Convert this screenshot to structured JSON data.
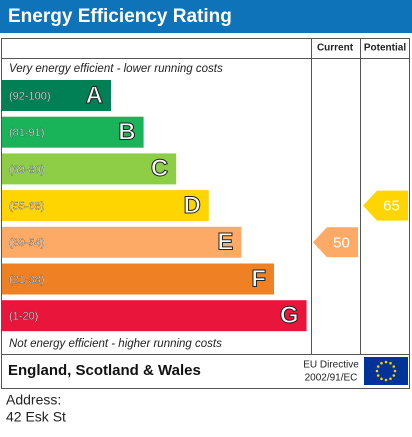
{
  "chart_data": {
    "type": "epc",
    "title": "Energy Efficiency Rating",
    "column_headers": [
      "Current",
      "Potential"
    ],
    "top_note": "Very energy efficient - lower running costs",
    "bottom_note": "Not energy efficient - higher running costs",
    "bands": [
      {
        "letter": "A",
        "range": "(92-100)",
        "color": "#008054"
      },
      {
        "letter": "B",
        "range": "(81-91)",
        "color": "#19b459"
      },
      {
        "letter": "C",
        "range": "(69-80)",
        "color": "#8dce46"
      },
      {
        "letter": "D",
        "range": "(55-68)",
        "color": "#ffd500"
      },
      {
        "letter": "E",
        "range": "(39-54)",
        "color": "#fcaa65"
      },
      {
        "letter": "F",
        "range": "(21-38)",
        "color": "#ef8023"
      },
      {
        "letter": "G",
        "range": "(1-20)",
        "color": "#e9153b"
      }
    ],
    "current": 50,
    "potential": 65,
    "region": "England, Scotland & Wales",
    "directive": [
      "EU Directive",
      "2002/91/EC"
    ],
    "address_label": "Address:",
    "address": "42 Esk St"
  }
}
